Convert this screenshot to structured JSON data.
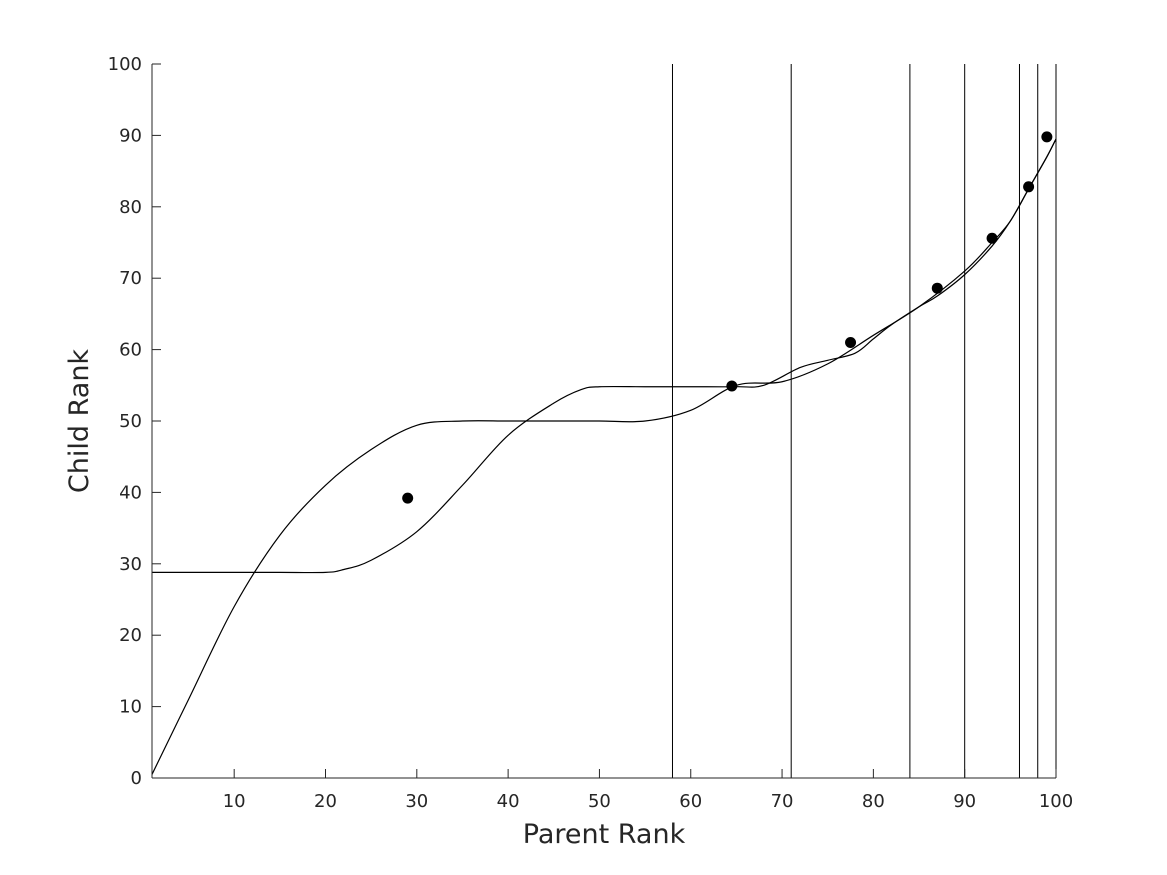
{
  "chart_data": {
    "type": "scatter",
    "title": "",
    "xlabel": "Parent Rank",
    "ylabel": "Child Rank",
    "xlim": [
      1,
      100
    ],
    "ylim": [
      0,
      100
    ],
    "xticks": [
      10,
      20,
      30,
      40,
      50,
      60,
      70,
      80,
      90,
      100
    ],
    "yticks": [
      0,
      10,
      20,
      30,
      40,
      50,
      60,
      70,
      80,
      90,
      100
    ],
    "grid": false,
    "legend": "none",
    "vertical_lines_x": [
      58,
      71,
      84,
      90,
      96,
      98,
      100
    ],
    "series": [
      {
        "kind": "points",
        "x": [
          29,
          64.5,
          77.5,
          87,
          93,
          97,
          99
        ],
        "y": [
          39.2,
          54.9,
          61.0,
          68.6,
          75.6,
          82.8,
          89.8
        ]
      },
      {
        "kind": "line",
        "x": [
          1,
          5,
          10,
          15,
          20,
          25,
          30,
          35,
          40,
          45,
          50,
          55,
          60,
          65,
          70,
          75,
          80,
          85,
          90,
          93,
          95,
          97,
          99,
          100
        ],
        "y": [
          0.5,
          11,
          24,
          34,
          41,
          46,
          49.4,
          50,
          50,
          50,
          50,
          50,
          51.5,
          55,
          55.5,
          58,
          62,
          66,
          71,
          75,
          78,
          82.5,
          87,
          89.5
        ]
      },
      {
        "kind": "line",
        "x": [
          1,
          5,
          10,
          15,
          20,
          22,
          25,
          30,
          35,
          40,
          45,
          48,
          50,
          55,
          60,
          65,
          68,
          72,
          75,
          78,
          80,
          82,
          85,
          87,
          90,
          93,
          95,
          97,
          99,
          100
        ],
        "y": [
          28.8,
          28.8,
          28.8,
          28.8,
          28.8,
          29.2,
          30.5,
          34.5,
          41,
          48,
          52.5,
          54.4,
          54.8,
          54.8,
          54.8,
          54.8,
          55,
          57.5,
          58.5,
          59.5,
          61.5,
          63.5,
          66,
          67.5,
          70.5,
          74.5,
          78,
          82.5,
          87,
          89.5
        ]
      }
    ]
  }
}
